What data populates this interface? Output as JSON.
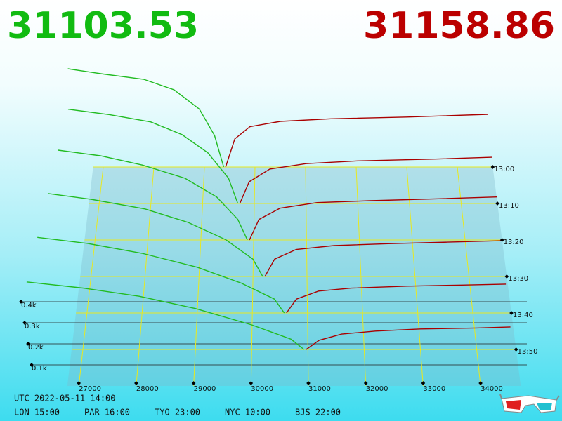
{
  "chart_data": {
    "type": "depth3d",
    "bid_price": "31103.53",
    "ask_price": "31158.86",
    "bid_color": "#22bb22",
    "ask_color": "#aa0000",
    "xticks": [
      27000,
      28000,
      29000,
      30000,
      31000,
      32000,
      33000,
      34000
    ],
    "zticks": [
      {
        "value": 100,
        "label": "0.1k"
      },
      {
        "value": 200,
        "label": "0.2k"
      },
      {
        "value": 300,
        "label": "0.3k"
      },
      {
        "value": 400,
        "label": "0.4k"
      }
    ],
    "snapshots": [
      {
        "time": "13:00",
        "bids": {
          "x": [
            26300,
            27000,
            27800,
            28400,
            28900,
            29200,
            29380
          ],
          "y": [
            560,
            530,
            500,
            440,
            330,
            180,
            0
          ]
        },
        "asks": {
          "x": [
            29420,
            29600,
            29900,
            30500,
            31500,
            33000,
            34600
          ],
          "y": [
            0,
            160,
            230,
            260,
            275,
            285,
            300
          ]
        }
      },
      {
        "time": "13:10",
        "bids": {
          "x": [
            26400,
            27200,
            28000,
            28600,
            29100,
            29500,
            29680
          ],
          "y": [
            520,
            490,
            450,
            380,
            280,
            140,
            0
          ]
        },
        "asks": {
          "x": [
            29720,
            29900,
            30300,
            31000,
            32000,
            33500,
            34600
          ],
          "y": [
            0,
            120,
            190,
            220,
            235,
            245,
            255
          ]
        }
      },
      {
        "time": "13:20",
        "bids": {
          "x": [
            26300,
            27100,
            27900,
            28700,
            29300,
            29700,
            29880
          ],
          "y": [
            480,
            450,
            400,
            330,
            230,
            110,
            0
          ]
        },
        "asks": {
          "x": [
            29920,
            30100,
            30500,
            31200,
            32200,
            33500,
            34600
          ],
          "y": [
            0,
            110,
            170,
            200,
            210,
            220,
            230
          ]
        }
      },
      {
        "time": "13:30",
        "bids": {
          "x": [
            26200,
            27000,
            28000,
            28800,
            29500,
            30000,
            30180
          ],
          "y": [
            430,
            400,
            350,
            280,
            190,
            90,
            0
          ]
        },
        "asks": {
          "x": [
            30220,
            30400,
            30800,
            31500,
            32500,
            33600,
            34600
          ],
          "y": [
            0,
            90,
            140,
            160,
            170,
            178,
            185
          ]
        }
      },
      {
        "time": "13:40",
        "bids": {
          "x": [
            26100,
            27000,
            28000,
            29000,
            29800,
            30400,
            30580
          ],
          "y": [
            380,
            350,
            300,
            230,
            150,
            70,
            0
          ]
        },
        "asks": {
          "x": [
            30620,
            30800,
            31200,
            31800,
            32800,
            33800,
            34600
          ],
          "y": [
            0,
            70,
            110,
            125,
            135,
            140,
            145
          ]
        }
      },
      {
        "time": "13:50",
        "bids": {
          "x": [
            26000,
            27000,
            28000,
            29000,
            30000,
            30700,
            30930
          ],
          "y": [
            330,
            300,
            260,
            200,
            120,
            50,
            0
          ]
        },
        "asks": {
          "x": [
            30970,
            31200,
            31600,
            32200,
            33000,
            34000,
            34600
          ],
          "y": [
            0,
            45,
            75,
            90,
            100,
            105,
            110
          ]
        }
      }
    ]
  },
  "footer": {
    "utc": "UTC 2022-05-11 14:00",
    "cities": [
      "LON 15:00",
      "PAR 16:00",
      "TYO 23:00",
      "NYC 10:00",
      "BJS 22:00"
    ]
  }
}
